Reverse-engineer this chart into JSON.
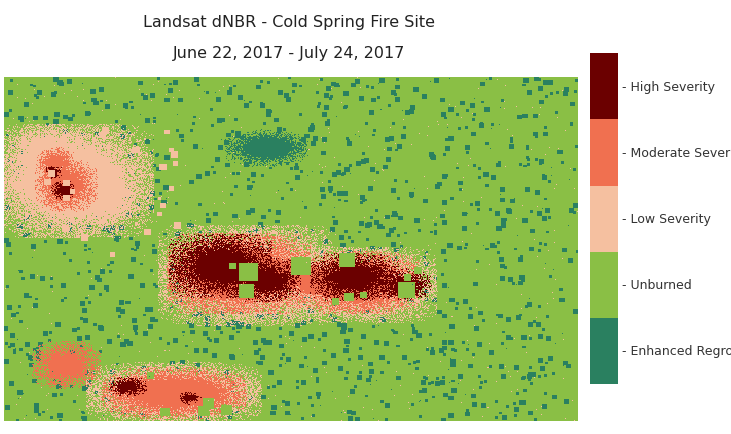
{
  "title_line1": "Landsat dNBR - Cold Spring Fire Site",
  "title_line2": "June 22, 2017 - July 24, 2017",
  "title_fontsize": 11.5,
  "colors": {
    "high_severity": "#6b0000",
    "moderate_severity": "#f07050",
    "low_severity": "#f5c0a0",
    "unburned": "#8abf45",
    "enhanced_regrowth": "#2a8060"
  },
  "legend_labels": [
    "High Severity",
    "Moderate Severity",
    "Low Severity",
    "Unburned",
    "Enhanced Regrowth"
  ],
  "background_color": "#ffffff",
  "fig_width": 7.31,
  "fig_height": 4.35,
  "dpi": 100
}
